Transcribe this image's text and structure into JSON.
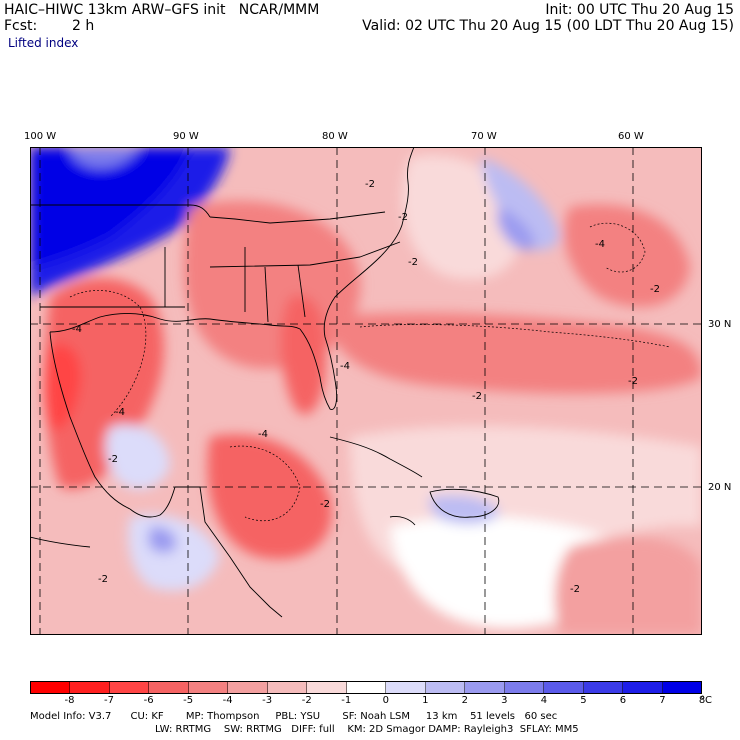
{
  "header": {
    "title": "HAIC–HIWC 13km ARW–GFS init   NCAR/MMM",
    "fcst_label": "Fcst:",
    "fcst_value": "2 h",
    "init": "Init: 00 UTC Thu 20 Aug 15",
    "valid": "Valid: 02 UTC Thu 20 Aug 15 (00 LDT Thu 20 Aug 15)",
    "field": "Lifted index"
  },
  "axes": {
    "lon_labels": [
      "100 W",
      "90 W",
      "80 W",
      "70 W",
      "60 W"
    ],
    "lat_labels": [
      "30 N",
      "20 N"
    ]
  },
  "colorbar": {
    "colors": [
      "#ff0000",
      "#ff2020",
      "#ff4545",
      "#f56363",
      "#f38181",
      "#f3a0a0",
      "#f5bcbc",
      "#f9dada",
      "#ffffff",
      "#dcdcfa",
      "#bcbcf3",
      "#9b9bf0",
      "#7c7cec",
      "#5b5bea",
      "#3b3be8",
      "#1e1ee8",
      "#0000e6"
    ],
    "labels": [
      "-8",
      "-7",
      "-6",
      "-5",
      "-4",
      "-3",
      "-2",
      "-1",
      "0",
      "1",
      "2",
      "3",
      "4",
      "5",
      "6",
      "7",
      "8"
    ],
    "unit": "°C"
  },
  "contour_labels": [
    "-2",
    "-4"
  ],
  "model_info": {
    "line1": "Model Info: V3.7      CU: KF       MP: Thompson     PBL: YSU       SF: Noah LSM     13 km    51 levels   60 sec",
    "line2": "LW: RRTMG    SW: RRTMG   DIFF: full    KM: 2D Smagor DAMP: Rayleigh3  SFLAY: MM5"
  }
}
